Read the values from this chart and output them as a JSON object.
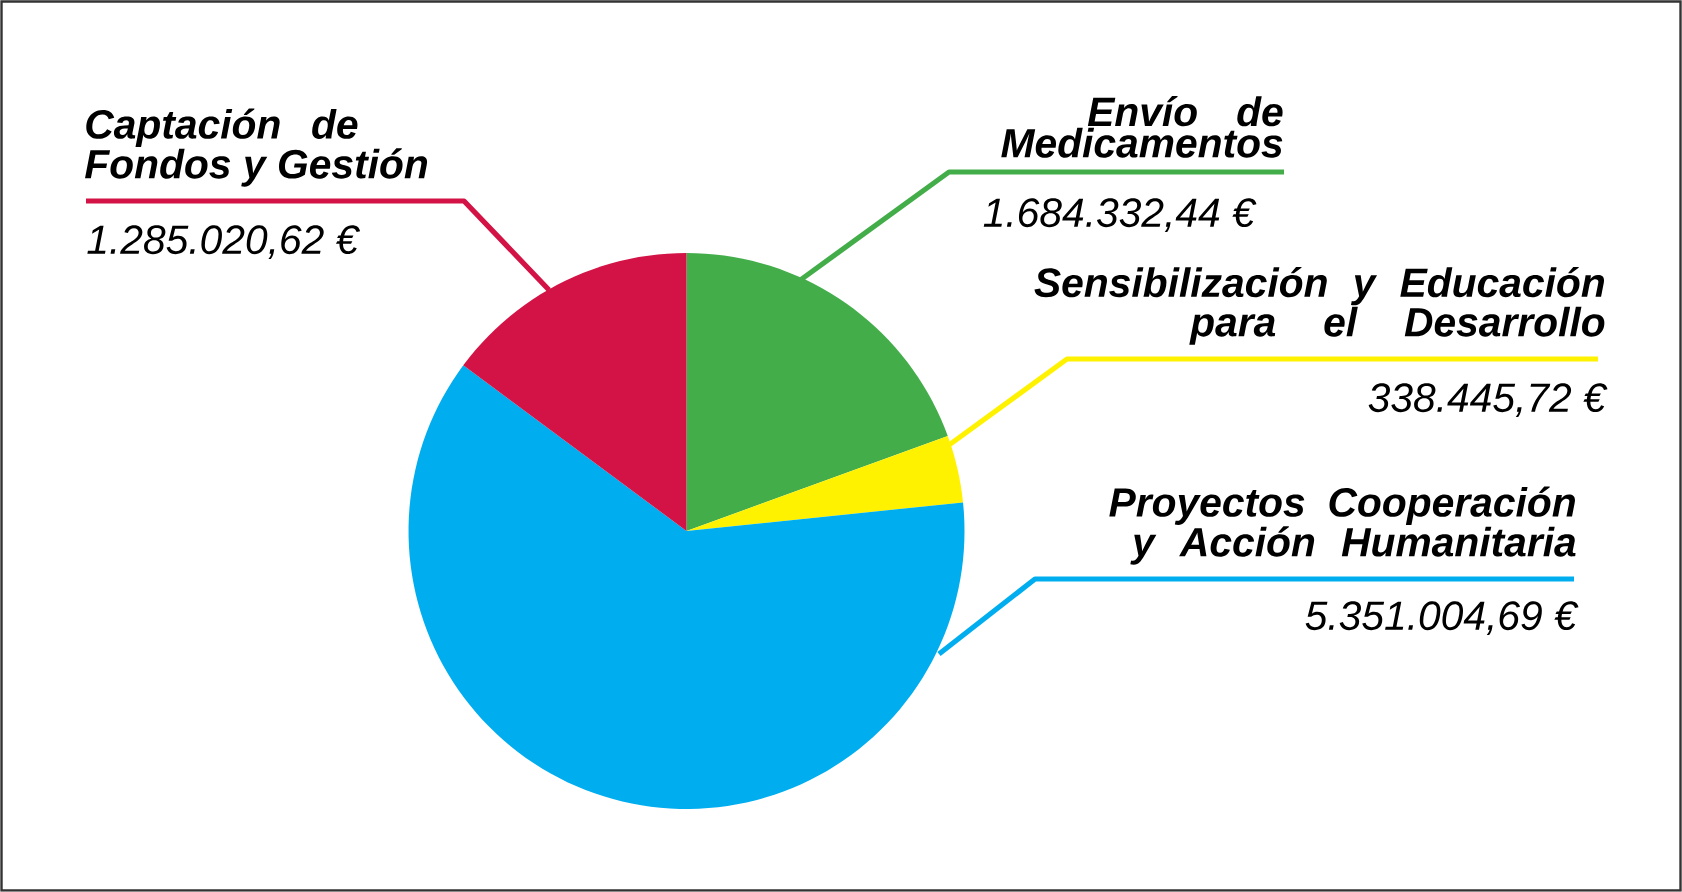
{
  "chart_data": {
    "type": "pie",
    "categories": [
      "Envío de Medicamentos",
      "Sensibilización y Educación para el Desarrollo",
      "Proyectos Cooperación y Acción Humanitaria",
      "Captación de Fondos y Gestión"
    ],
    "values": [
      1684332.44,
      338445.72,
      5351004.69,
      1285020.62
    ],
    "value_labels": [
      "1.684.332,44 €",
      "338.445,72 €",
      "5.351.004,69 €",
      "1.285.020,62 €"
    ],
    "colors": [
      "#43ad4a",
      "#fff200",
      "#00aeef",
      "#d31245"
    ]
  }
}
